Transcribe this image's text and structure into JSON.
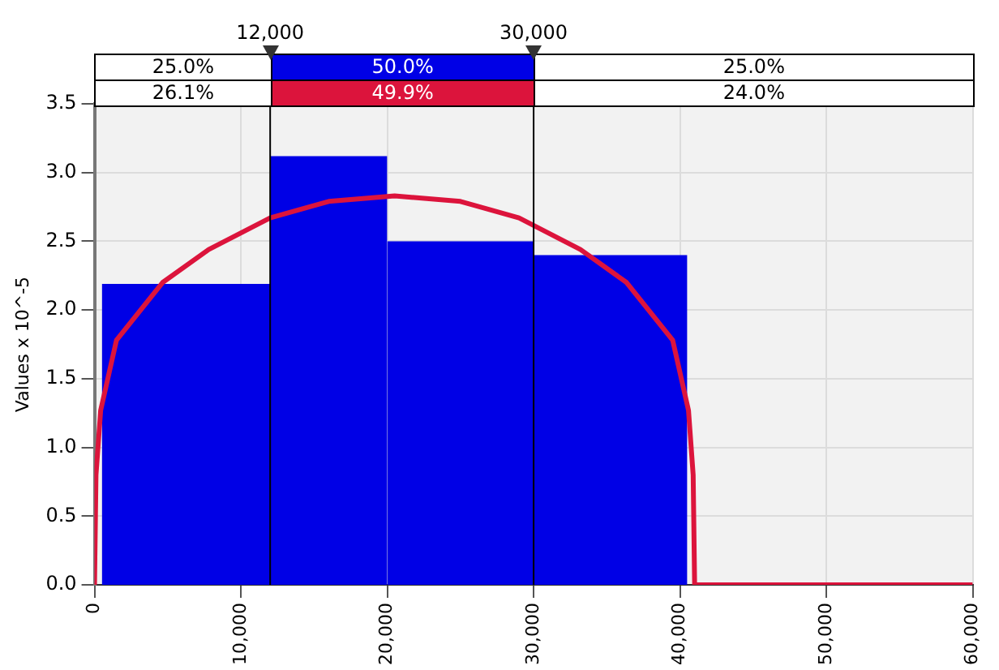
{
  "chart_data": {
    "type": "histogram",
    "ylabel": "Values x 10^-5",
    "bins": [
      500,
      12000,
      20000,
      30000,
      40500
    ],
    "values": [
      2.19,
      3.12,
      2.5,
      2.4
    ],
    "color": "#0000e6",
    "series": [
      {
        "type": "line",
        "color": "#dc143c",
        "x": [
          0,
          100,
          420,
          1500,
          4650,
          7800,
          12000,
          16000,
          20500,
          25000,
          29000,
          33200,
          36350,
          39500,
          40580,
          40900,
          41000,
          41100,
          60000
        ],
        "values": [
          0,
          0.8,
          1.27,
          1.78,
          2.2,
          2.44,
          2.67,
          2.79,
          2.83,
          2.79,
          2.67,
          2.44,
          2.2,
          1.78,
          1.27,
          0.8,
          0,
          0,
          0
        ]
      }
    ],
    "xlim": [
      0,
      60000
    ],
    "xticks": [
      {
        "value": 0,
        "label": "0"
      },
      {
        "value": 10000,
        "label": "10,000"
      },
      {
        "value": 20000,
        "label": "20,000"
      },
      {
        "value": 30000,
        "label": "30,000"
      },
      {
        "value": 40000,
        "label": "40,000"
      },
      {
        "value": 50000,
        "label": "50,000"
      },
      {
        "value": 60000,
        "label": "60,000"
      }
    ],
    "ylim": [
      0,
      3.5
    ],
    "yticks": [
      {
        "value": 0,
        "label": "0.0"
      },
      0.5,
      {
        "value": 1,
        "label": "1.0"
      },
      1.5,
      {
        "value": 2,
        "label": "2.0"
      },
      2.5,
      {
        "value": 3,
        "label": "3.0"
      },
      3.5
    ],
    "grid": true,
    "legend": false,
    "marker": "none",
    "line_style": "solid",
    "ref_lines": [
      {
        "axis": "x",
        "value": 12000,
        "label": "12,000"
      },
      {
        "axis": "x",
        "value": 30000,
        "label": "30,000"
      }
    ],
    "annotations": [
      "25.0%",
      "50.0%",
      "25.0%",
      "26.1%",
      "49.9%",
      "24.0%"
    ]
  }
}
